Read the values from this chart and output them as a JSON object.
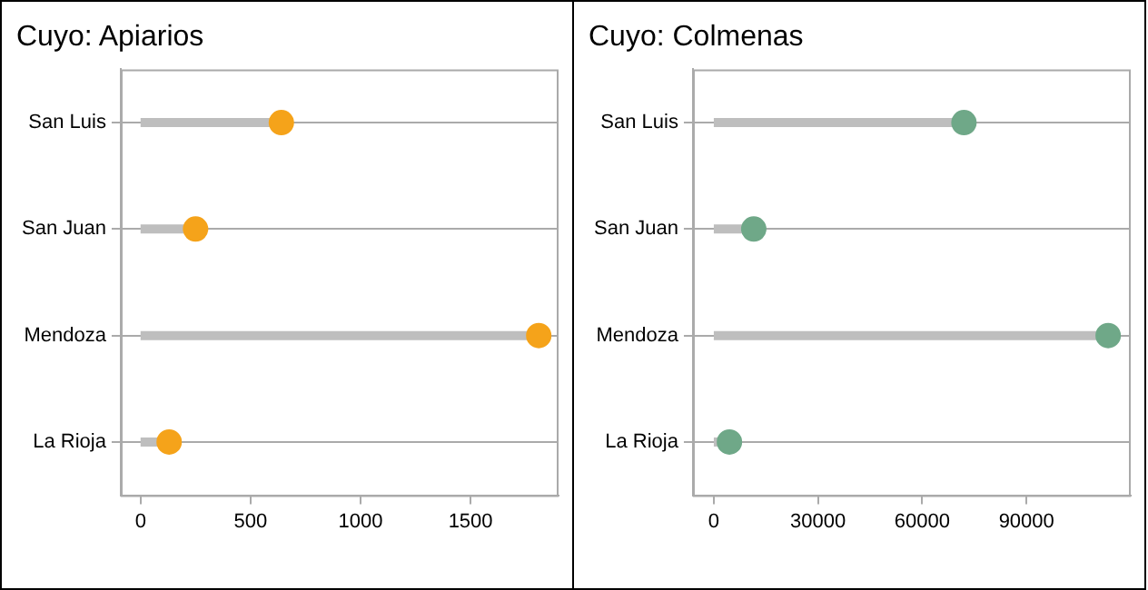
{
  "chart_data": [
    {
      "type": "lollipop",
      "title": "Cuyo: Apiarios",
      "orientation": "horizontal",
      "categories": [
        "San Luis",
        "San Juan",
        "Mendoza",
        "La Rioja"
      ],
      "series": [
        {
          "color": "#f5a31a",
          "values": [
            640,
            250,
            1810,
            130
          ]
        }
      ],
      "xlim": [
        -90,
        1900
      ],
      "xticks": [
        0,
        500,
        1000,
        1500
      ],
      "grid": "y",
      "legend": false,
      "marker": "circle"
    },
    {
      "type": "lollipop",
      "title": "Cuyo: Colmenas",
      "orientation": "horizontal",
      "categories": [
        "San Luis",
        "San Juan",
        "Mendoza",
        "La Rioja"
      ],
      "series": [
        {
          "color": "#6fa888",
          "values": [
            72000,
            11500,
            113500,
            4500
          ]
        }
      ],
      "xlim": [
        -6000,
        120000
      ],
      "xticks": [
        0,
        30000,
        60000,
        90000
      ],
      "grid": "y",
      "legend": false,
      "marker": "circle"
    }
  ]
}
